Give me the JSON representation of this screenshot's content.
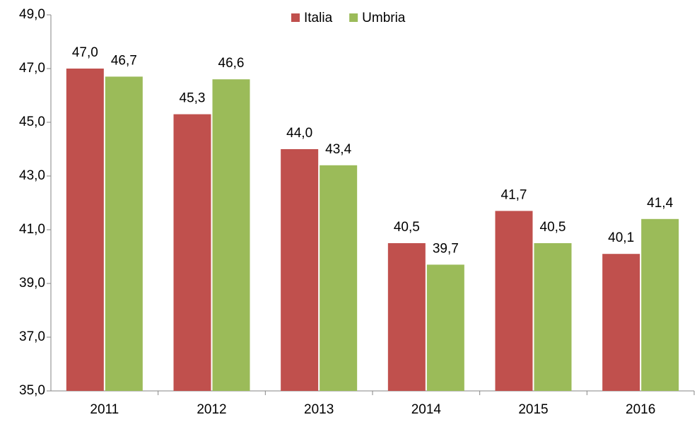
{
  "chart_data": {
    "type": "bar",
    "categories": [
      "2011",
      "2012",
      "2013",
      "2014",
      "2015",
      "2016"
    ],
    "series": [
      {
        "name": "Italia",
        "color": "#c0504d",
        "values": [
          47.0,
          45.3,
          44.0,
          40.5,
          41.7,
          40.1
        ],
        "value_labels": [
          "47,0",
          "45,3",
          "44,0",
          "40,5",
          "41,7",
          "40,1"
        ]
      },
      {
        "name": "Umbria",
        "color": "#9bbb59",
        "values": [
          46.7,
          46.6,
          43.4,
          39.7,
          40.5,
          41.4
        ],
        "value_labels": [
          "46,7",
          "46,6",
          "43,4",
          "39,7",
          "40,5",
          "41,4"
        ]
      }
    ],
    "ylim": [
      35,
      49
    ],
    "yticks": [
      {
        "value": 35,
        "label": "35,0"
      },
      {
        "value": 37,
        "label": "37,0"
      },
      {
        "value": 39,
        "label": "39,0"
      },
      {
        "value": 41,
        "label": "41,0"
      },
      {
        "value": 43,
        "label": "43,0"
      },
      {
        "value": 45,
        "label": "45,0"
      },
      {
        "value": 47,
        "label": "47,0"
      },
      {
        "value": 49,
        "label": "49,0"
      }
    ],
    "grid": false,
    "legend": "top"
  }
}
